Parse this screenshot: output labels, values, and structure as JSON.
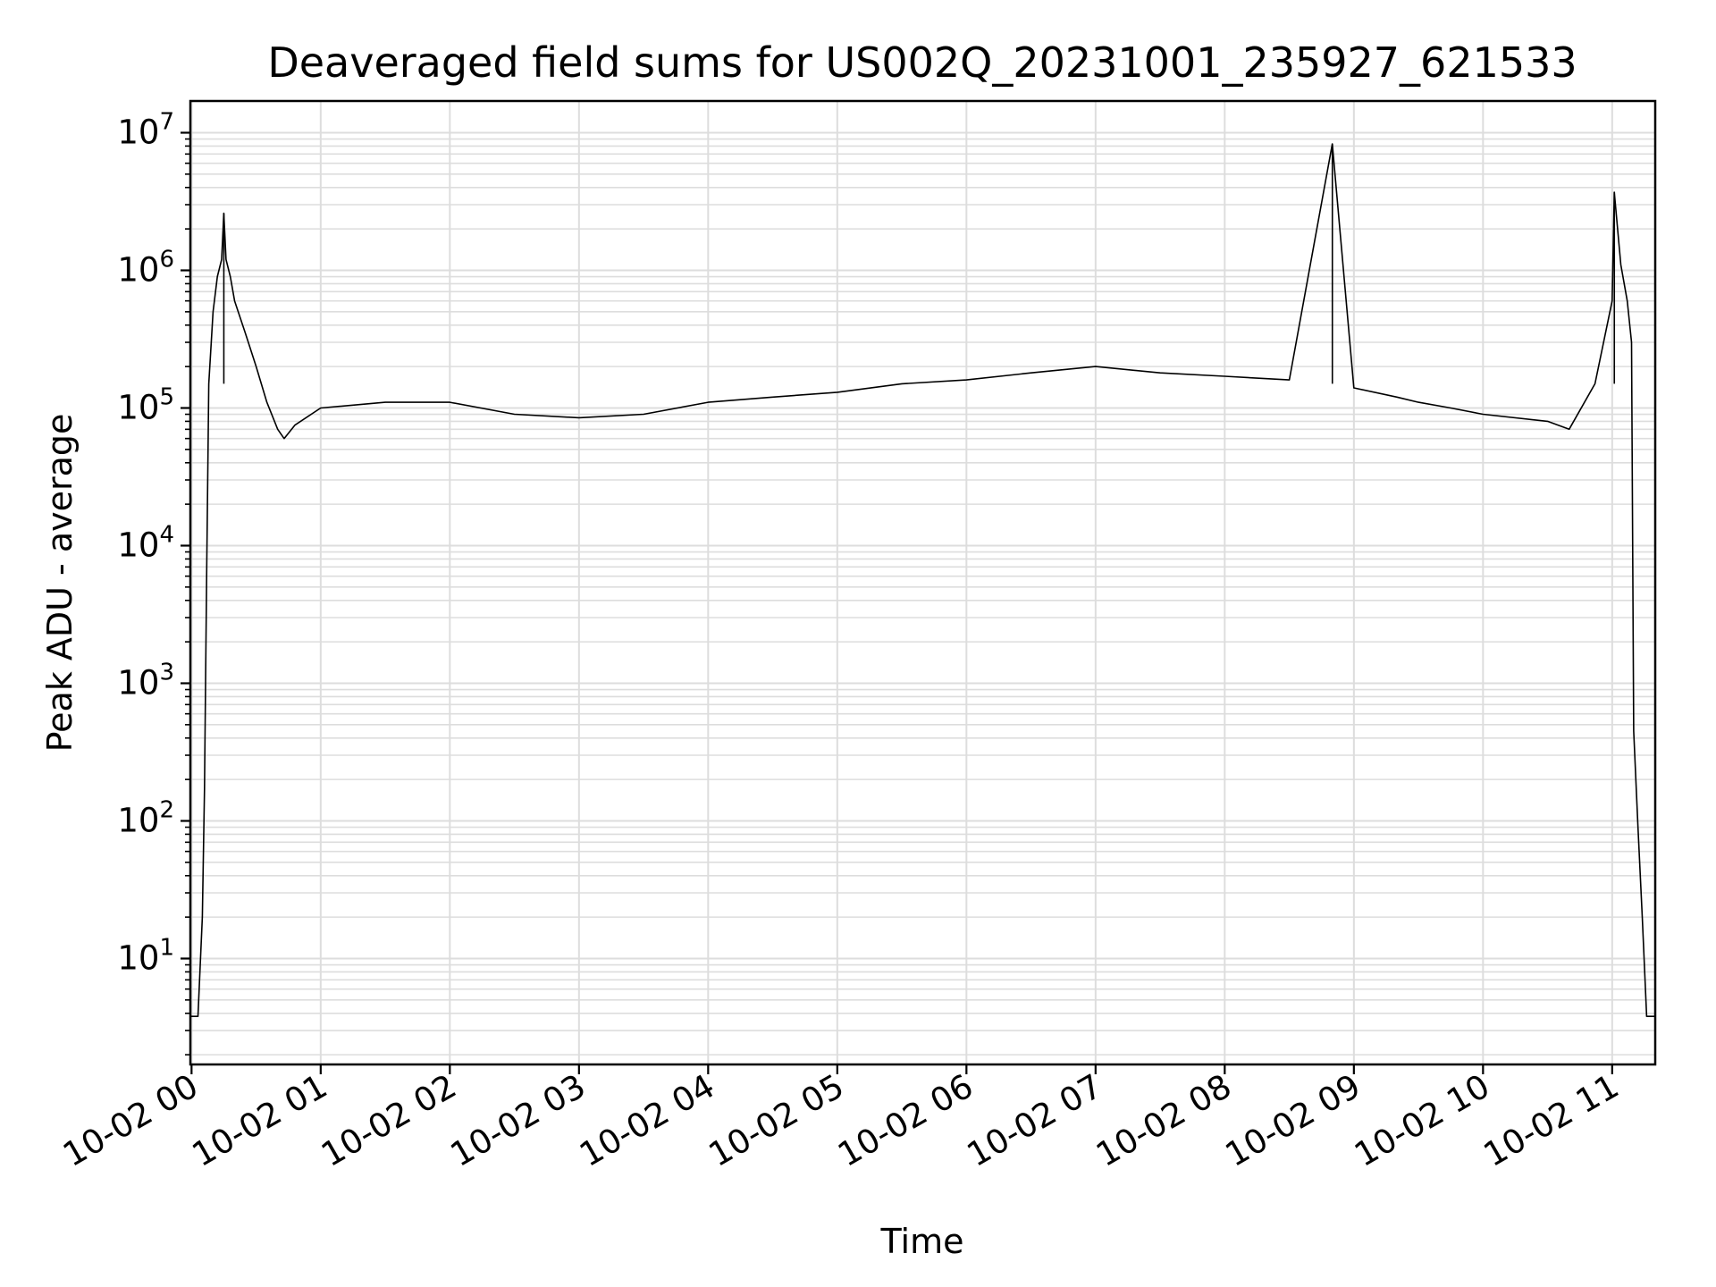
{
  "chart_data": {
    "type": "line",
    "title": "Deaveraged field sums for US002Q_20231001_235927_621533",
    "xlabel": "Time",
    "ylabel": "Peak ADU - average",
    "yscale": "log",
    "ylim": [
      1.7,
      17000000
    ],
    "xlim": [
      "2023-10-01T23:59:27",
      "2023-10-02T11:20:00"
    ],
    "grid": true,
    "x_ticks": [
      "10-02 00",
      "10-02 01",
      "10-02 02",
      "10-02 03",
      "10-02 04",
      "10-02 05",
      "10-02 06",
      "10-02 07",
      "10-02 08",
      "10-02 09",
      "10-02 10",
      "10-02 11"
    ],
    "y_ticks": [
      {
        "base": "10",
        "exp": "1",
        "value": 10
      },
      {
        "base": "10",
        "exp": "2",
        "value": 100
      },
      {
        "base": "10",
        "exp": "3",
        "value": 1000
      },
      {
        "base": "10",
        "exp": "4",
        "value": 10000
      },
      {
        "base": "10",
        "exp": "5",
        "value": 100000
      },
      {
        "base": "10",
        "exp": "6",
        "value": 1000000
      },
      {
        "base": "10",
        "exp": "7",
        "value": 10000000
      }
    ],
    "series": [
      {
        "color": "#000000",
        "x": [
          "2023-10-01T23:59:27",
          "2023-10-02T00:03:00",
          "2023-10-02T00:05:00",
          "2023-10-02T00:06:00",
          "2023-10-02T00:07:00",
          "2023-10-02T00:08:00",
          "2023-10-02T00:10:00",
          "2023-10-02T00:12:00",
          "2023-10-02T00:14:00",
          "2023-10-02T00:15:00",
          "2023-10-02T00:16:00",
          "2023-10-02T00:18:00",
          "2023-10-02T00:20:00",
          "2023-10-02T00:25:00",
          "2023-10-02T00:30:00",
          "2023-10-02T00:35:00",
          "2023-10-02T00:40:00",
          "2023-10-02T00:43:00",
          "2023-10-02T00:48:00",
          "2023-10-02T01:00:00",
          "2023-10-02T01:30:00",
          "2023-10-02T02:00:00",
          "2023-10-02T02:30:00",
          "2023-10-02T03:00:00",
          "2023-10-02T03:30:00",
          "2023-10-02T04:00:00",
          "2023-10-02T04:30:00",
          "2023-10-02T05:00:00",
          "2023-10-02T05:30:00",
          "2023-10-02T06:00:00",
          "2023-10-02T06:30:00",
          "2023-10-02T07:00:00",
          "2023-10-02T07:30:00",
          "2023-10-02T08:00:00",
          "2023-10-02T08:30:00",
          "2023-10-02T08:50:00",
          "2023-10-02T09:00:00",
          "2023-10-02T09:20:00",
          "2023-10-02T09:30:00",
          "2023-10-02T09:45:00",
          "2023-10-02T10:00:00",
          "2023-10-02T10:30:00",
          "2023-10-02T10:40:00",
          "2023-10-02T10:52:00",
          "2023-10-02T11:00:00",
          "2023-10-02T11:01:00",
          "2023-10-02T11:04:00",
          "2023-10-02T11:07:00",
          "2023-10-02T11:09:00",
          "2023-10-02T11:10:00",
          "2023-10-02T11:12:00",
          "2023-10-02T11:14:00",
          "2023-10-02T11:16:00",
          "2023-10-02T11:20:00"
        ],
        "y": [
          3.8,
          3.8,
          20,
          170,
          6000,
          150000,
          500000,
          900000,
          1200000,
          2600000,
          1200000,
          900000,
          600000,
          350000,
          200000,
          110000,
          70000,
          60000,
          75000,
          100000,
          110000,
          110000,
          90000,
          85000,
          90000,
          110000,
          120000,
          130000,
          150000,
          160000,
          180000,
          200000,
          180000,
          170000,
          160000,
          8300000,
          140000,
          120000,
          110000,
          100000,
          90000,
          80000,
          70000,
          150000,
          600000,
          3700000,
          1100000,
          600000,
          300000,
          450,
          90,
          20,
          3.8,
          3.8
        ]
      }
    ],
    "annotations": [
      {
        "x": "2023-10-02T00:15:00",
        "y": 2600000
      },
      {
        "x": "2023-10-02T08:50:00",
        "y": 8300000
      },
      {
        "x": "2023-10-02T11:01:00",
        "y": 3700000
      }
    ]
  }
}
